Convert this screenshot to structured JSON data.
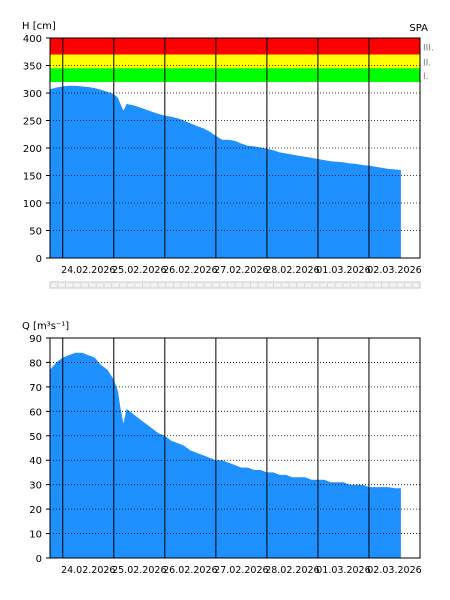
{
  "charts": [
    {
      "type": "area",
      "ylabel": "H [cm]",
      "station": "SPA",
      "ylim": [
        0,
        400
      ],
      "yticks": [
        0,
        50,
        100,
        150,
        200,
        250,
        300,
        350,
        400
      ],
      "grid": true,
      "fill_color": "#1e90ff",
      "x_start": "2026-02-23T18:00",
      "x_end": "2026-03-03T00:00",
      "day_ticks": [
        "24.02.2026",
        "25.02.2026",
        "26.02.2026",
        "27.02.2026",
        "28.02.2026",
        "01.03.2026",
        "02.03.2026"
      ],
      "flood_levels": [
        {
          "label": "III.",
          "from": 370,
          "to": 400,
          "color": "#ff0000"
        },
        {
          "label": "II.",
          "from": 345,
          "to": 370,
          "color": "#ffff00"
        },
        {
          "label": "I.",
          "from": 320,
          "to": 345,
          "color": "#00ff00"
        }
      ],
      "series": [
        {
          "x": [
            "2026-02-23T18:00",
            "2026-02-23T21:00",
            "2026-02-24T00:00",
            "2026-02-24T03:00",
            "2026-02-24T06:00",
            "2026-02-24T09:00",
            "2026-02-24T12:00",
            "2026-02-24T15:00",
            "2026-02-24T18:00",
            "2026-02-24T21:00",
            "2026-02-25T00:00",
            "2026-02-25T02:00",
            "2026-02-25T03:00",
            "2026-02-25T04:30",
            "2026-02-25T06:00",
            "2026-02-25T09:00",
            "2026-02-25T12:00",
            "2026-02-25T15:00",
            "2026-02-25T18:00",
            "2026-02-25T21:00",
            "2026-02-26T00:00",
            "2026-02-26T03:00",
            "2026-02-26T06:00",
            "2026-02-26T09:00",
            "2026-02-26T12:00",
            "2026-02-26T15:00",
            "2026-02-26T18:00",
            "2026-02-26T21:00",
            "2026-02-27T00:00",
            "2026-02-27T03:00",
            "2026-02-27T06:00",
            "2026-02-27T09:00",
            "2026-02-27T12:00",
            "2026-02-27T15:00",
            "2026-02-27T18:00",
            "2026-02-27T21:00",
            "2026-02-28T00:00",
            "2026-02-28T03:00",
            "2026-02-28T06:00",
            "2026-02-28T09:00",
            "2026-02-28T12:00",
            "2026-02-28T15:00",
            "2026-02-28T18:00",
            "2026-02-28T21:00",
            "2026-03-01T00:00",
            "2026-03-01T03:00",
            "2026-03-01T06:00",
            "2026-03-01T09:00",
            "2026-03-01T12:00",
            "2026-03-01T15:00",
            "2026-03-01T18:00",
            "2026-03-01T21:00",
            "2026-03-02T00:00",
            "2026-03-02T03:00",
            "2026-03-02T06:00",
            "2026-03-02T09:00",
            "2026-03-02T12:00",
            "2026-03-02T15:00"
          ],
          "y": [
            307,
            310,
            312,
            313,
            313,
            312,
            311,
            309,
            306,
            302,
            298,
            291,
            281,
            268,
            280,
            278,
            274,
            270,
            266,
            262,
            259,
            257,
            254,
            250,
            245,
            240,
            236,
            230,
            222,
            215,
            215,
            213,
            208,
            204,
            203,
            201,
            199,
            196,
            192,
            190,
            188,
            186,
            184,
            182,
            180,
            178,
            176,
            175,
            174,
            172,
            171,
            169,
            168,
            166,
            164,
            162,
            161,
            160
          ]
        }
      ]
    },
    {
      "type": "area",
      "ylabel": "Q [m³s⁻¹]",
      "ylim": [
        0,
        90
      ],
      "yticks": [
        0,
        10,
        20,
        30,
        40,
        50,
        60,
        70,
        80,
        90
      ],
      "grid": true,
      "fill_color": "#1e90ff",
      "x_start": "2026-02-23T18:00",
      "x_end": "2026-03-03T00:00",
      "day_ticks": [
        "24.02.2026",
        "25.02.2026",
        "26.02.2026",
        "27.02.2026",
        "28.02.2026",
        "01.03.2026",
        "02.03.2026"
      ],
      "series": [
        {
          "x": [
            "2026-02-23T18:00",
            "2026-02-23T21:00",
            "2026-02-24T00:00",
            "2026-02-24T03:00",
            "2026-02-24T06:00",
            "2026-02-24T09:00",
            "2026-02-24T12:00",
            "2026-02-24T15:00",
            "2026-02-24T18:00",
            "2026-02-24T21:00",
            "2026-02-25T00:00",
            "2026-02-25T02:00",
            "2026-02-25T03:00",
            "2026-02-25T04:30",
            "2026-02-25T06:00",
            "2026-02-25T09:00",
            "2026-02-25T12:00",
            "2026-02-25T15:00",
            "2026-02-25T18:00",
            "2026-02-25T21:00",
            "2026-02-26T00:00",
            "2026-02-26T03:00",
            "2026-02-26T06:00",
            "2026-02-26T09:00",
            "2026-02-26T12:00",
            "2026-02-26T15:00",
            "2026-02-26T18:00",
            "2026-02-26T21:00",
            "2026-02-27T00:00",
            "2026-02-27T03:00",
            "2026-02-27T06:00",
            "2026-02-27T09:00",
            "2026-02-27T12:00",
            "2026-02-27T15:00",
            "2026-02-27T18:00",
            "2026-02-27T21:00",
            "2026-02-28T00:00",
            "2026-02-28T03:00",
            "2026-02-28T06:00",
            "2026-02-28T09:00",
            "2026-02-28T12:00",
            "2026-02-28T15:00",
            "2026-02-28T18:00",
            "2026-02-28T21:00",
            "2026-03-01T00:00",
            "2026-03-01T03:00",
            "2026-03-01T06:00",
            "2026-03-01T09:00",
            "2026-03-01T12:00",
            "2026-03-01T15:00",
            "2026-03-01T18:00",
            "2026-03-01T21:00",
            "2026-03-02T00:00",
            "2026-03-02T03:00",
            "2026-03-02T06:00",
            "2026-03-02T09:00",
            "2026-03-02T12:00",
            "2026-03-02T15:00"
          ],
          "y": [
            77,
            80,
            82,
            83,
            84,
            84,
            83,
            82,
            79,
            77,
            73,
            68,
            62,
            55,
            61,
            59,
            57,
            55,
            53,
            51,
            50,
            48,
            47,
            46,
            44,
            43,
            42,
            41,
            40,
            40,
            39,
            38,
            37,
            37,
            36,
            36,
            35,
            35,
            34,
            34,
            33,
            33,
            33,
            32,
            32,
            32,
            31,
            31,
            31,
            30,
            30,
            30,
            29,
            29,
            29,
            29,
            28.5,
            28.5
          ]
        }
      ]
    }
  ]
}
